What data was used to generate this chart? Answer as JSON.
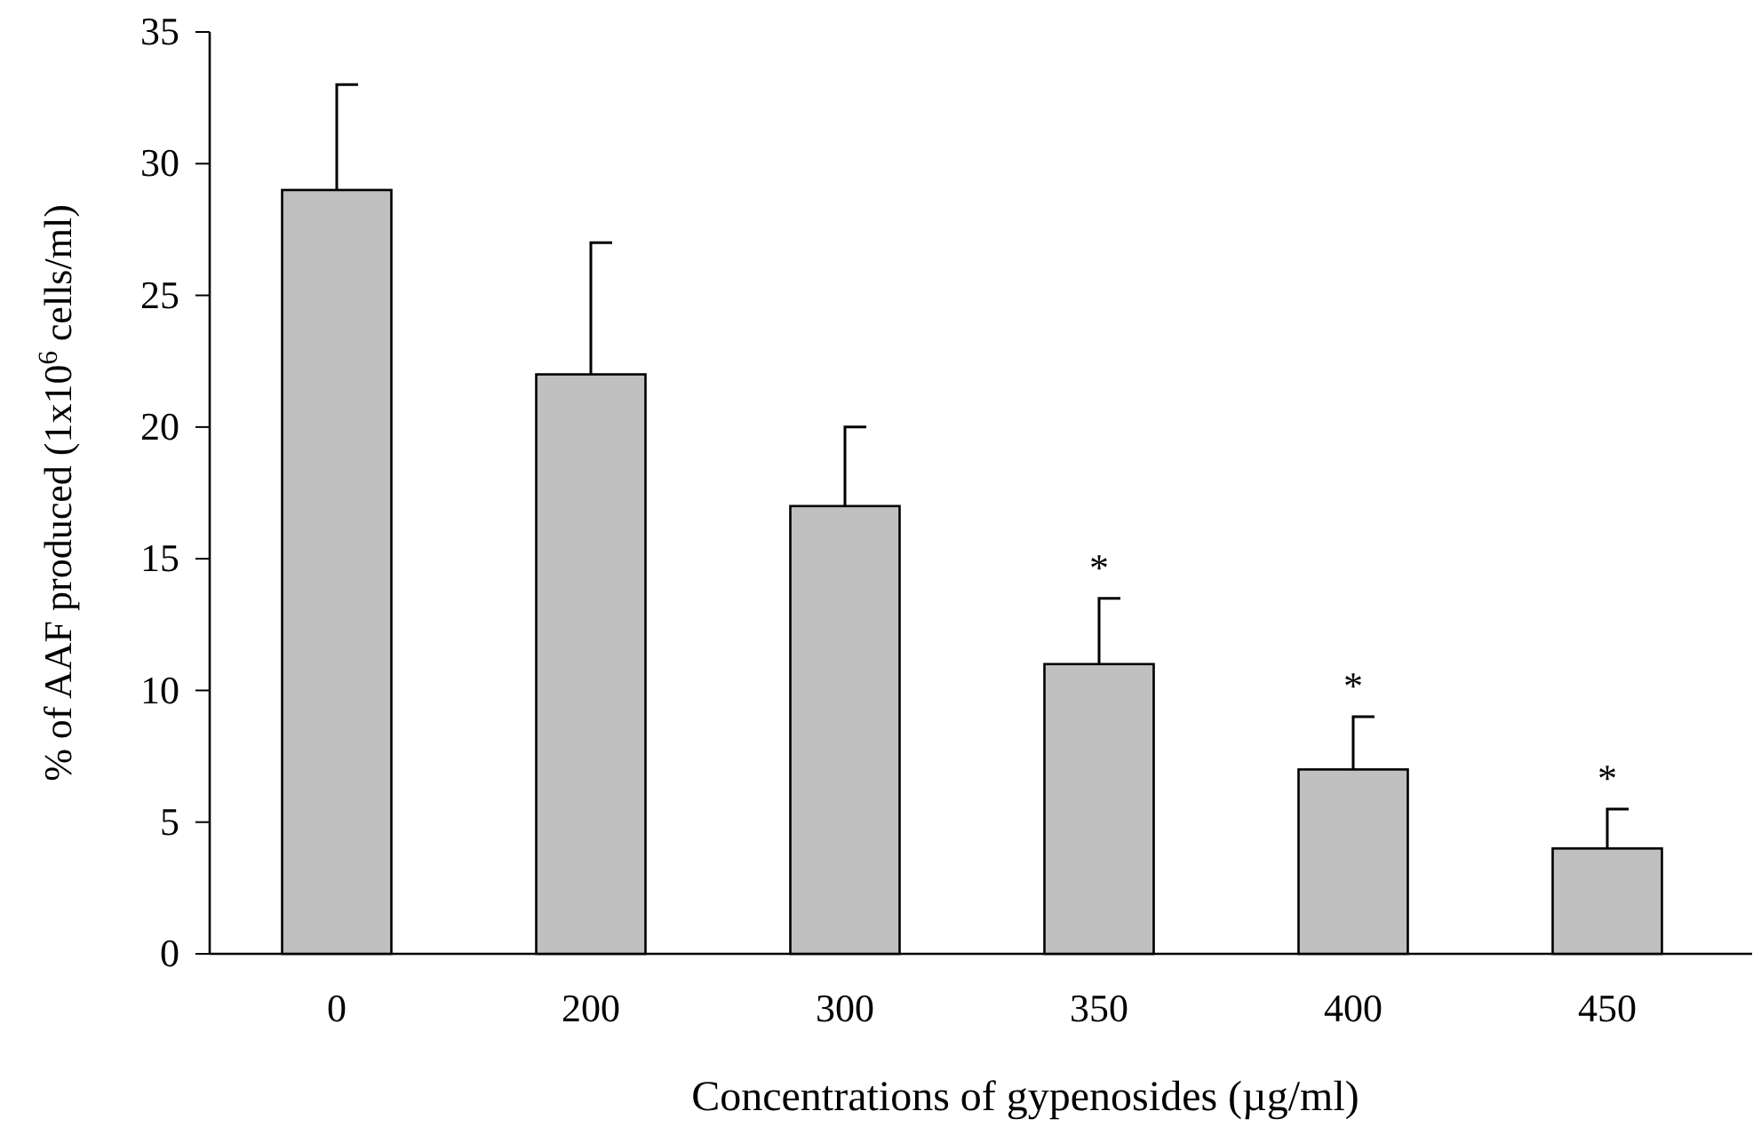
{
  "chart_data": {
    "type": "bar",
    "xlabel": "Concentrations of gypenosides (µg/ml)",
    "ylabel": "% of AAF produced (1x10$^{6}$ cells/ml)",
    "categories": [
      "0",
      "200",
      "300",
      "350",
      "400",
      "450"
    ],
    "values": [
      29,
      22,
      17,
      11,
      7,
      4
    ],
    "errors": [
      [
        29,
        33
      ],
      [
        22,
        27
      ],
      [
        17,
        20
      ],
      [
        11,
        13.5
      ],
      [
        7,
        9
      ],
      [
        4,
        5.5
      ]
    ],
    "color": "#c0c0c0",
    "ylim": [
      0,
      35
    ],
    "yticks": [
      0,
      5,
      10,
      15,
      20,
      25,
      30,
      35
    ],
    "grid": false,
    "annotations": [
      {
        "text": "*",
        "x": "350",
        "y": 13.5
      },
      {
        "text": "*",
        "x": "400",
        "y": 9
      },
      {
        "text": "*",
        "x": "450",
        "y": 5.5
      }
    ]
  }
}
